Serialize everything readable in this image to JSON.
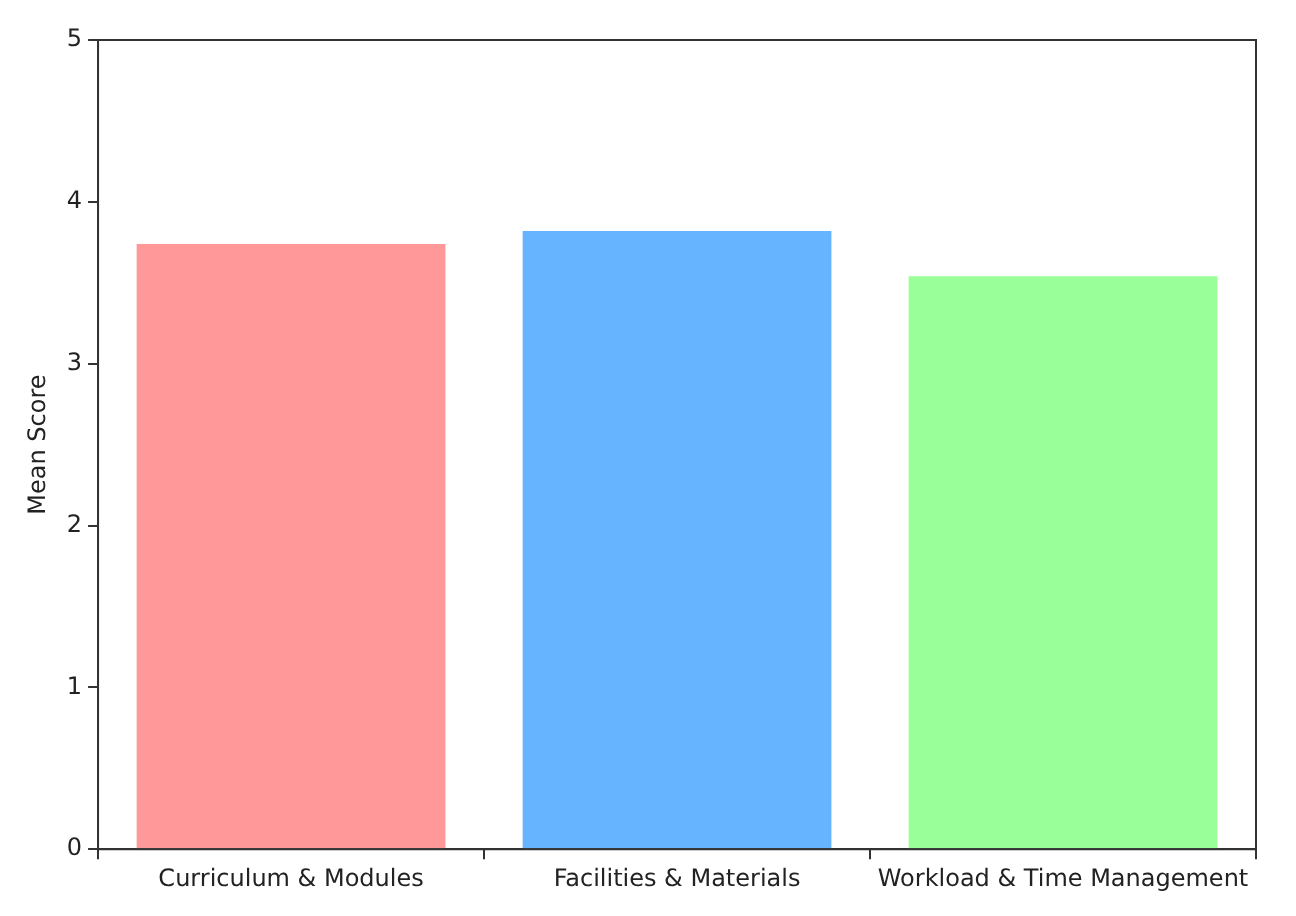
{
  "chart_data": {
    "type": "bar",
    "ylabel": "Mean Score",
    "categories": [
      "Curriculum & Modules",
      "Facilities & Materials",
      "Workload & Time Management"
    ],
    "values": [
      3.74,
      3.82,
      3.54
    ],
    "colors": [
      "#ff9999",
      "#66b3ff",
      "#99ff99"
    ],
    "ylim": [
      0,
      5
    ],
    "yticks": [
      0,
      1,
      2,
      3,
      4,
      5
    ],
    "grid": false,
    "legend": false
  }
}
